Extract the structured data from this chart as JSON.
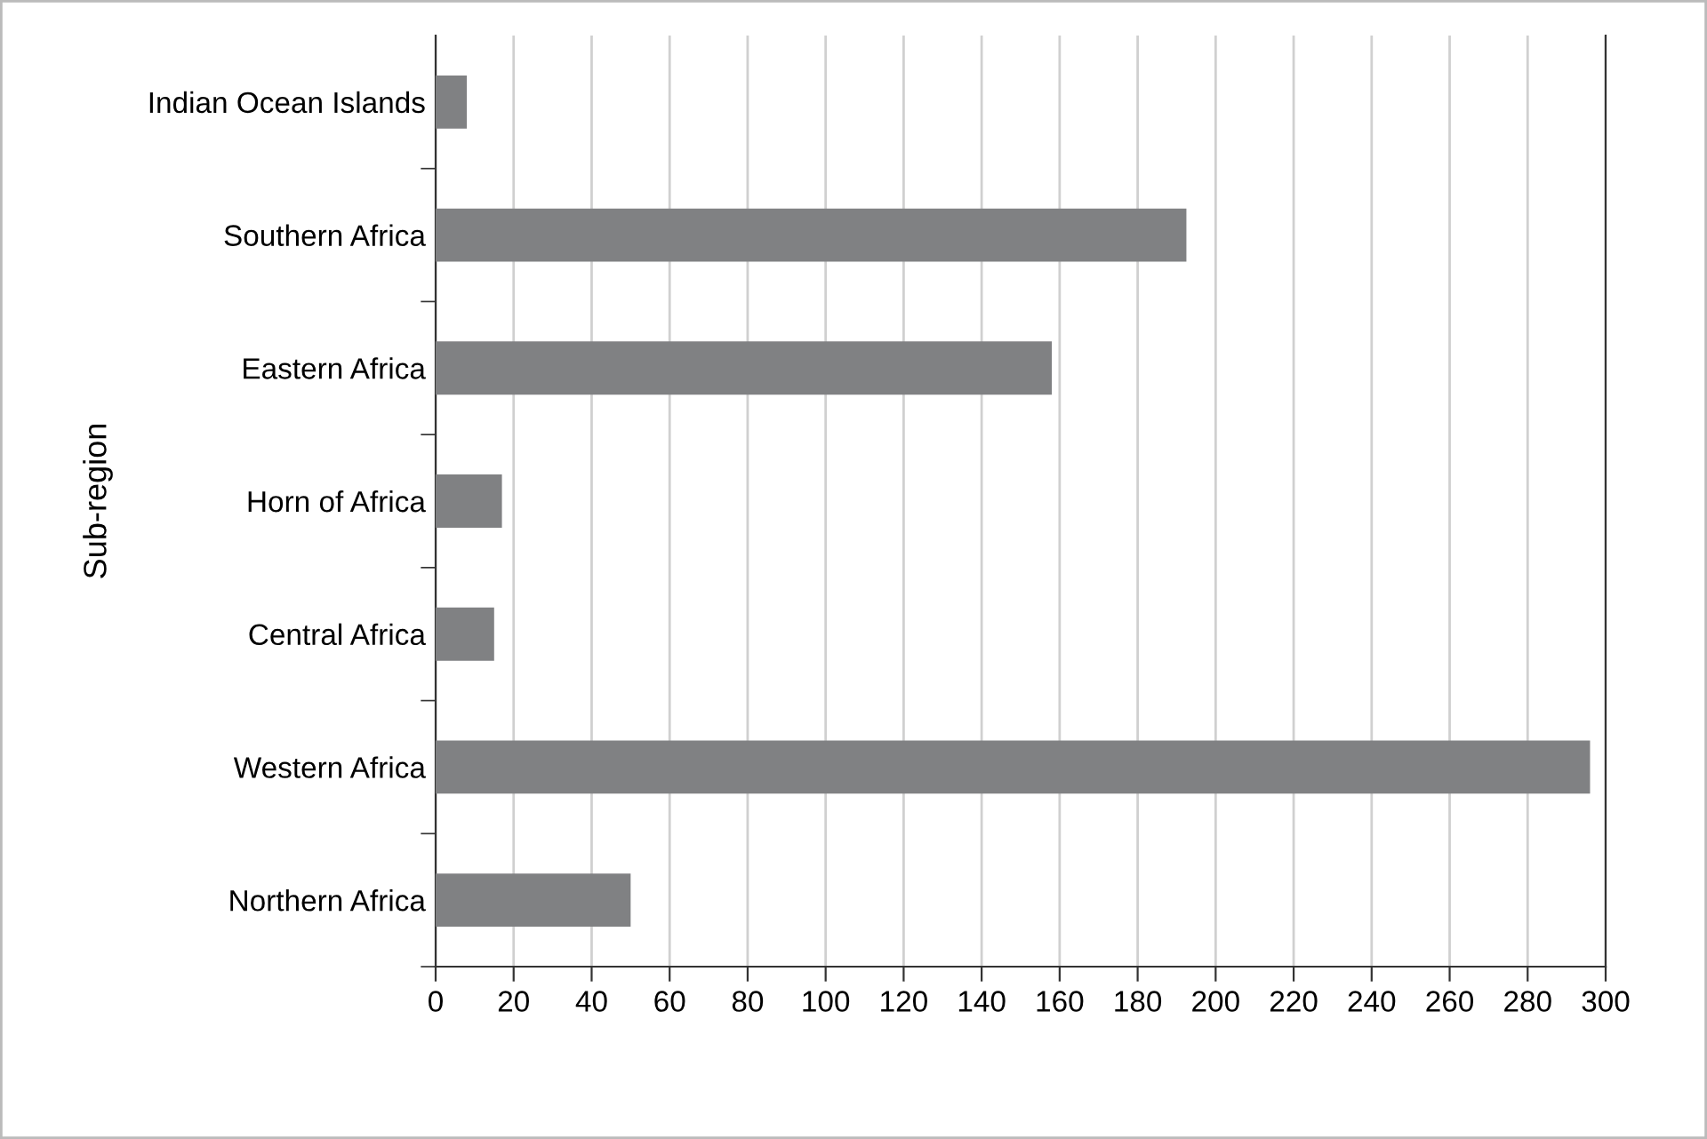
{
  "chart_data": {
    "type": "bar",
    "orientation": "horizontal",
    "ylabel": "Sub-region",
    "categories": [
      "Indian Ocean Islands",
      "Southern Africa",
      "Eastern Africa",
      "Horn of Africa",
      "Central Africa",
      "Western Africa",
      "Northern Africa"
    ],
    "values": [
      8,
      192.5,
      158,
      17,
      15,
      296,
      50
    ],
    "color": "#808183",
    "xlim": [
      0,
      300
    ],
    "xticks": [
      0,
      20,
      40,
      60,
      80,
      100,
      120,
      140,
      160,
      180,
      200,
      220,
      240,
      260,
      280,
      300
    ],
    "grid": "x",
    "legend": false
  }
}
